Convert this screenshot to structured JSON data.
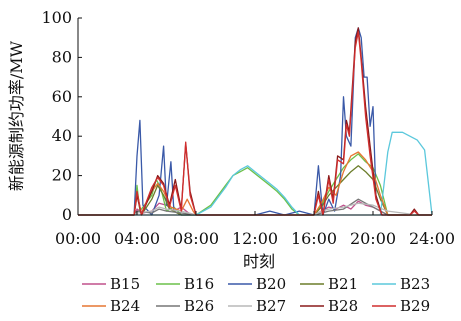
{
  "chart_data": {
    "type": "line",
    "title": "",
    "xlabel": "时刻",
    "ylabel": "新能源制约功率/MW",
    "xlim": [
      0,
      24
    ],
    "ylim": [
      0,
      100
    ],
    "x_ticks": [
      "00:00",
      "04:00",
      "08:00",
      "12:00",
      "16:00",
      "20:00",
      "24:00"
    ],
    "y_ticks": [
      "0",
      "20",
      "40",
      "60",
      "80",
      "100"
    ],
    "grid": false,
    "legend_position": "bottom",
    "series": [
      {
        "name": "B15",
        "color": "#c0508c",
        "points": [
          [
            0,
            0
          ],
          [
            3.8,
            0
          ],
          [
            4,
            3
          ],
          [
            4.4,
            1
          ],
          [
            5,
            2
          ],
          [
            5.5,
            6
          ],
          [
            6,
            5
          ],
          [
            6.5,
            2
          ],
          [
            7,
            4
          ],
          [
            7.5,
            1
          ],
          [
            8,
            0
          ],
          [
            16,
            0
          ],
          [
            16.5,
            2
          ],
          [
            17,
            4
          ],
          [
            17.5,
            3
          ],
          [
            18,
            5
          ],
          [
            18.5,
            3
          ],
          [
            19,
            7
          ],
          [
            19.5,
            5
          ],
          [
            20,
            4
          ],
          [
            20.5,
            2
          ],
          [
            21,
            0
          ],
          [
            24,
            0
          ]
        ]
      },
      {
        "name": "B16",
        "color": "#6cc04a",
        "points": [
          [
            0,
            0
          ],
          [
            3.8,
            0
          ],
          [
            4,
            15
          ],
          [
            4.2,
            2
          ],
          [
            5,
            10
          ],
          [
            5.3,
            18
          ],
          [
            5.6,
            14
          ],
          [
            6,
            2
          ],
          [
            6.5,
            4
          ],
          [
            7,
            0
          ],
          [
            8,
            0
          ],
          [
            9,
            5
          ],
          [
            10,
            15
          ],
          [
            10.5,
            20
          ],
          [
            11,
            22
          ],
          [
            11.5,
            24
          ],
          [
            12,
            21
          ],
          [
            12.5,
            18
          ],
          [
            13,
            15
          ],
          [
            13.5,
            12
          ],
          [
            14,
            8
          ],
          [
            14.5,
            3
          ],
          [
            15,
            0
          ],
          [
            16,
            0
          ],
          [
            16.5,
            5
          ],
          [
            17,
            12
          ],
          [
            17.5,
            18
          ],
          [
            18,
            24
          ],
          [
            18.5,
            28
          ],
          [
            19,
            31
          ],
          [
            19.5,
            27
          ],
          [
            20,
            24
          ],
          [
            20.5,
            15
          ],
          [
            21,
            0
          ],
          [
            24,
            0
          ]
        ]
      },
      {
        "name": "B20",
        "color": "#3a59a8",
        "points": [
          [
            0,
            0
          ],
          [
            3.8,
            0
          ],
          [
            4,
            30
          ],
          [
            4.2,
            48
          ],
          [
            4.4,
            5
          ],
          [
            5,
            0
          ],
          [
            5.5,
            10
          ],
          [
            5.8,
            35
          ],
          [
            6,
            5
          ],
          [
            6.3,
            27
          ],
          [
            6.5,
            2
          ],
          [
            7,
            0
          ],
          [
            8,
            0
          ],
          [
            12,
            0
          ],
          [
            13,
            2
          ],
          [
            14,
            0
          ],
          [
            15,
            2
          ],
          [
            16,
            0
          ],
          [
            16.3,
            25
          ],
          [
            16.6,
            0
          ],
          [
            17,
            8
          ],
          [
            17.4,
            2
          ],
          [
            17.8,
            20
          ],
          [
            18,
            60
          ],
          [
            18.2,
            40
          ],
          [
            18.5,
            35
          ],
          [
            18.8,
            90
          ],
          [
            19,
            95
          ],
          [
            19.2,
            90
          ],
          [
            19.4,
            70
          ],
          [
            19.6,
            70
          ],
          [
            19.8,
            45
          ],
          [
            20,
            55
          ],
          [
            20.2,
            10
          ],
          [
            20.6,
            0
          ],
          [
            24,
            0
          ]
        ]
      },
      {
        "name": "B21",
        "color": "#6b7d2a",
        "points": [
          [
            0,
            0
          ],
          [
            3.8,
            0
          ],
          [
            4,
            12
          ],
          [
            4.3,
            0
          ],
          [
            5,
            8
          ],
          [
            5.4,
            15
          ],
          [
            5.8,
            10
          ],
          [
            6.2,
            3
          ],
          [
            7,
            0
          ],
          [
            16,
            0
          ],
          [
            16.5,
            4
          ],
          [
            17,
            10
          ],
          [
            17.5,
            14
          ],
          [
            18,
            18
          ],
          [
            18.5,
            22
          ],
          [
            19,
            25
          ],
          [
            19.5,
            22
          ],
          [
            20,
            18
          ],
          [
            20.5,
            8
          ],
          [
            21,
            0
          ],
          [
            24,
            0
          ]
        ]
      },
      {
        "name": "B23",
        "color": "#5bc8dc",
        "points": [
          [
            0,
            0
          ],
          [
            8,
            0
          ],
          [
            9,
            4
          ],
          [
            10,
            14
          ],
          [
            10.5,
            20
          ],
          [
            11,
            23
          ],
          [
            11.5,
            25
          ],
          [
            12,
            22
          ],
          [
            12.5,
            19
          ],
          [
            13,
            16
          ],
          [
            13.5,
            13
          ],
          [
            14,
            9
          ],
          [
            14.5,
            4
          ],
          [
            15,
            0
          ],
          [
            20.5,
            0
          ],
          [
            21,
            32
          ],
          [
            21.3,
            42
          ],
          [
            22,
            42
          ],
          [
            22.5,
            40
          ],
          [
            23,
            38
          ],
          [
            23.5,
            33
          ],
          [
            24,
            0
          ]
        ]
      },
      {
        "name": "B24",
        "color": "#e67632",
        "points": [
          [
            0,
            0
          ],
          [
            3.8,
            0
          ],
          [
            4,
            10
          ],
          [
            4.3,
            1
          ],
          [
            5,
            12
          ],
          [
            5.4,
            16
          ],
          [
            5.8,
            12
          ],
          [
            6.3,
            4
          ],
          [
            7,
            2
          ],
          [
            7.4,
            8
          ],
          [
            7.8,
            2
          ],
          [
            8,
            0
          ],
          [
            16,
            0
          ],
          [
            16.5,
            6
          ],
          [
            17,
            14
          ],
          [
            17.5,
            10
          ],
          [
            18,
            22
          ],
          [
            18.5,
            30
          ],
          [
            19,
            32
          ],
          [
            19.5,
            28
          ],
          [
            20,
            22
          ],
          [
            20.5,
            10
          ],
          [
            21,
            0
          ],
          [
            24,
            0
          ]
        ]
      },
      {
        "name": "B26",
        "color": "#777777",
        "points": [
          [
            0,
            0
          ],
          [
            3.8,
            0
          ],
          [
            4,
            2
          ],
          [
            5,
            1
          ],
          [
            5.5,
            3
          ],
          [
            6,
            2
          ],
          [
            7,
            1
          ],
          [
            8,
            0
          ],
          [
            16,
            0
          ],
          [
            17,
            2
          ],
          [
            18,
            3
          ],
          [
            19,
            8
          ],
          [
            19.5,
            6
          ],
          [
            20,
            4
          ],
          [
            21,
            0
          ],
          [
            24,
            0
          ]
        ]
      },
      {
        "name": "B27",
        "color": "#b8b8b8",
        "points": [
          [
            0,
            0
          ],
          [
            3.8,
            0
          ],
          [
            4,
            1
          ],
          [
            5,
            2
          ],
          [
            5.5,
            4
          ],
          [
            6,
            3
          ],
          [
            7,
            2
          ],
          [
            8,
            0
          ],
          [
            16,
            0
          ],
          [
            16.5,
            2
          ],
          [
            17,
            3
          ],
          [
            18,
            4
          ],
          [
            19,
            6
          ],
          [
            20,
            5
          ],
          [
            21,
            2
          ],
          [
            22,
            1
          ],
          [
            23,
            0
          ],
          [
            24,
            0
          ]
        ]
      },
      {
        "name": "B28",
        "color": "#8a1a1a",
        "points": [
          [
            0,
            0
          ],
          [
            3.8,
            0
          ],
          [
            4,
            10
          ],
          [
            4.3,
            0
          ],
          [
            5,
            12
          ],
          [
            5.4,
            20
          ],
          [
            5.8,
            16
          ],
          [
            6.2,
            5
          ],
          [
            6.6,
            18
          ],
          [
            7,
            3
          ],
          [
            7.3,
            36
          ],
          [
            7.6,
            12
          ],
          [
            8,
            0
          ],
          [
            16,
            0
          ],
          [
            16.3,
            12
          ],
          [
            16.6,
            0
          ],
          [
            17,
            20
          ],
          [
            17.3,
            8
          ],
          [
            17.6,
            30
          ],
          [
            18,
            28
          ],
          [
            18.2,
            48
          ],
          [
            18.4,
            42
          ],
          [
            18.8,
            88
          ],
          [
            19,
            95
          ],
          [
            19.2,
            80
          ],
          [
            19.5,
            55
          ],
          [
            19.8,
            35
          ],
          [
            20.2,
            10
          ],
          [
            20.6,
            0
          ],
          [
            22.5,
            0
          ],
          [
            22.8,
            3
          ],
          [
            23.1,
            0
          ],
          [
            24,
            0
          ]
        ]
      },
      {
        "name": "B29",
        "color": "#d02e2e",
        "points": [
          [
            0,
            0
          ],
          [
            3.8,
            0
          ],
          [
            4,
            12
          ],
          [
            4.3,
            0
          ],
          [
            5,
            14
          ],
          [
            5.4,
            19
          ],
          [
            5.8,
            15
          ],
          [
            6.2,
            4
          ],
          [
            6.6,
            15
          ],
          [
            7,
            2
          ],
          [
            7.3,
            37
          ],
          [
            7.6,
            10
          ],
          [
            8,
            0
          ],
          [
            16,
            0
          ],
          [
            16.3,
            10
          ],
          [
            16.6,
            0
          ],
          [
            17,
            18
          ],
          [
            17.3,
            6
          ],
          [
            17.6,
            28
          ],
          [
            18,
            26
          ],
          [
            18.2,
            46
          ],
          [
            18.4,
            40
          ],
          [
            18.8,
            85
          ],
          [
            19,
            93
          ],
          [
            19.2,
            78
          ],
          [
            19.5,
            50
          ],
          [
            19.8,
            30
          ],
          [
            20.2,
            8
          ],
          [
            20.6,
            0
          ],
          [
            22.5,
            0
          ],
          [
            22.8,
            2
          ],
          [
            23.1,
            0
          ],
          [
            24,
            0
          ]
        ]
      }
    ]
  }
}
